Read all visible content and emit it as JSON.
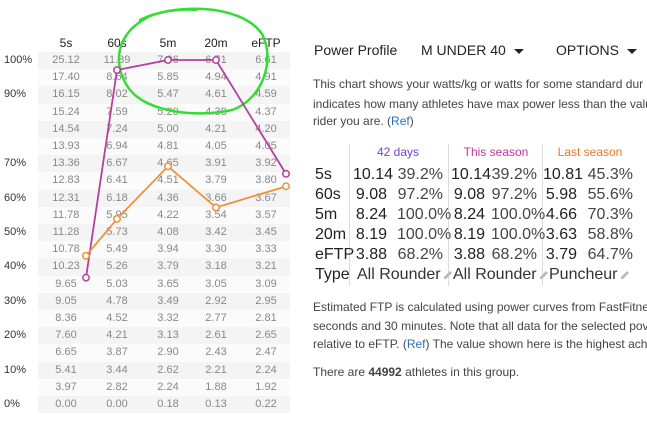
{
  "power_table": {
    "columns": [
      "5s",
      "60s",
      "5m",
      "20m",
      "eFTP"
    ],
    "percentiles": [
      "100%",
      "",
      "90%",
      "",
      "",
      "",
      "80%",
      "",
      "",
      "70%",
      "",
      "60%",
      "",
      "",
      "50%",
      "",
      "40%",
      "",
      "",
      "30%",
      "",
      "",
      "20%",
      "",
      "10%",
      "",
      "0%"
    ],
    "percentile_rows": [
      {
        "label": "100%",
        "values": [
          "25.12",
          "11.89",
          "7.96",
          "6.71",
          "6.61"
        ]
      },
      {
        "label": "",
        "values": [
          "17.40",
          "8.64",
          "5.85",
          "4.94",
          "4.91"
        ]
      },
      {
        "label": "90%",
        "values": [
          "16.15",
          "8.02",
          "5.47",
          "4.61",
          "4.59"
        ]
      },
      {
        "label": "",
        "values": [
          "15.24",
          "7.59",
          "5.20",
          "4.38",
          "4.37"
        ]
      },
      {
        "label": "",
        "values": [
          "14.54",
          "7.24",
          "5.00",
          "4.21",
          "4.20"
        ]
      },
      {
        "label": "",
        "values": [
          "13.93",
          "6.94",
          "4.81",
          "4.05",
          "4.05"
        ]
      },
      {
        "label": "70%",
        "values": [
          "13.36",
          "6.67",
          "4.65",
          "3.91",
          "3.92"
        ]
      },
      {
        "label": "",
        "values": [
          "12.83",
          "6.41",
          "4.51",
          "3.79",
          "3.80"
        ]
      },
      {
        "label": "60%",
        "values": [
          "12.31",
          "6.18",
          "4.36",
          "3.66",
          "3.67"
        ]
      },
      {
        "label": "",
        "values": [
          "11.78",
          "5.95",
          "4.22",
          "3.54",
          "3.57"
        ]
      },
      {
        "label": "50%",
        "values": [
          "11.28",
          "5.73",
          "4.08",
          "3.42",
          "3.45"
        ]
      },
      {
        "label": "",
        "values": [
          "10.78",
          "5.49",
          "3.94",
          "3.30",
          "3.33"
        ]
      },
      {
        "label": "40%",
        "values": [
          "10.23",
          "5.26",
          "3.79",
          "3.18",
          "3.21"
        ]
      },
      {
        "label": "",
        "values": [
          "9.65",
          "5.03",
          "3.65",
          "3.05",
          "3.09"
        ]
      },
      {
        "label": "30%",
        "values": [
          "9.05",
          "4.78",
          "3.49",
          "2.92",
          "2.95"
        ]
      },
      {
        "label": "",
        "values": [
          "8.36",
          "4.52",
          "3.32",
          "2.77",
          "2.81"
        ]
      },
      {
        "label": "20%",
        "values": [
          "7.60",
          "4.21",
          "3.13",
          "2.61",
          "2.65"
        ]
      },
      {
        "label": "",
        "values": [
          "6.65",
          "3.87",
          "2.90",
          "2.43",
          "2.47"
        ]
      },
      {
        "label": "10%",
        "values": [
          "5.41",
          "3.44",
          "2.62",
          "2.21",
          "2.24"
        ]
      },
      {
        "label": "",
        "values": [
          "3.97",
          "2.82",
          "2.24",
          "1.88",
          "1.92"
        ]
      },
      {
        "label": "0%",
        "values": [
          "0.00",
          "0.00",
          "0.18",
          "0.13",
          "0.22"
        ]
      }
    ],
    "series": [
      {
        "name": "this season",
        "color": "#b4409e",
        "percent": [
          39.2,
          97.2,
          100.0,
          100.0,
          68.2
        ]
      },
      {
        "name": "last season",
        "color": "#f0913a",
        "percent": [
          45.3,
          55.6,
          70.3,
          58.8,
          64.7
        ]
      }
    ],
    "annotation_color": "#33dd33"
  },
  "header": {
    "title": "Power Profile",
    "group_dropdown": "M UNDER 40",
    "options_dropdown": "OPTIONS"
  },
  "intro": {
    "line1": "This chart shows your watts/kg or watts for some standard dur",
    "line2": "indicates how many athletes have max power less than the valu",
    "line3a": "rider you are. (",
    "ref": "Ref",
    "line3b": ")"
  },
  "profile": {
    "headers": {
      "c1": "42 days",
      "c2": "This season",
      "c3": "Last season"
    },
    "header_colors": {
      "c1": "#7a3fd1",
      "c2": "#c2379e",
      "c3": "#e8782a"
    },
    "rows": [
      {
        "key": "5s",
        "v1": "10.14",
        "p1": "39.2%",
        "v2": "10.14",
        "p2": "39.2%",
        "v3": "10.81",
        "p3": "45.3%"
      },
      {
        "key": "60s",
        "v1": "9.08",
        "p1": "97.2%",
        "v2": "9.08",
        "p2": "97.2%",
        "v3": "5.98",
        "p3": "55.6%"
      },
      {
        "key": "5m",
        "v1": "8.24",
        "p1": "100.0%",
        "v2": "8.24",
        "p2": "100.0%",
        "v3": "4.66",
        "p3": "70.3%"
      },
      {
        "key": "20m",
        "v1": "8.19",
        "p1": "100.0%",
        "v2": "8.19",
        "p2": "100.0%",
        "v3": "3.63",
        "p3": "58.8%"
      },
      {
        "key": "eFTP",
        "v1": "3.88",
        "p1": "68.2%",
        "v2": "3.88",
        "p2": "68.2%",
        "v3": "3.79",
        "p3": "64.7%"
      }
    ],
    "type_row": {
      "key": "Type",
      "t1": "All Rounder",
      "t2": "All Rounder",
      "t3": "Puncheur"
    }
  },
  "ftp_note": {
    "line1": "Estimated FTP is calculated using power curves from FastFitne",
    "line2": "seconds and 30 minutes. Note that all data for the selected pov",
    "line3a": "relative to eFTP. (",
    "ref": "Ref",
    "line3b": ") The value shown here is the highest achi"
  },
  "group_count": {
    "prefix": "There are ",
    "count": "44992",
    "suffix": " athletes in this group."
  }
}
